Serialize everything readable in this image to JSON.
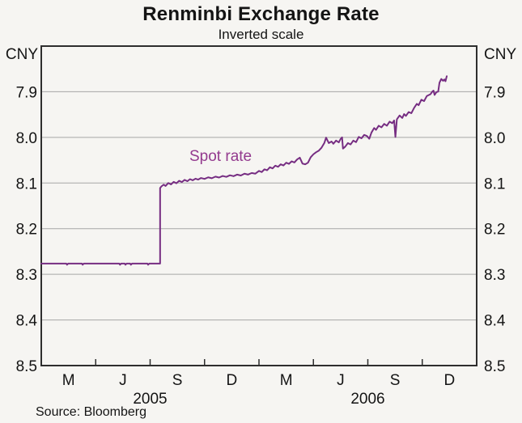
{
  "chart_data": {
    "type": "line",
    "title": "Renminbi Exchange Rate",
    "subtitle": "Inverted scale",
    "y_unit": "CNY",
    "source": "Source: Bloomberg",
    "annotation": {
      "text": "Spot rate"
    },
    "legend_position": "inline-annotation",
    "grid": true,
    "y_axis": {
      "inverted": true,
      "ylim": [
        7.8,
        8.5
      ],
      "ticks": [
        7.9,
        8.0,
        8.1,
        8.2,
        8.3,
        8.4,
        8.5
      ],
      "tick_label_format": "0.1f",
      "labels_both_sides": true,
      "gridline_ticks": [
        7.9,
        8.0,
        8.1,
        8.2,
        8.3,
        8.4
      ]
    },
    "x_axis": {
      "start_month": "2005-01",
      "end_month": "2006-12",
      "months_span": 24,
      "quarter_tick_month_offsets": [
        3,
        6,
        9,
        12,
        15,
        18,
        21
      ],
      "month_labels": [
        {
          "label": "M",
          "m": 1.5
        },
        {
          "label": "J",
          "m": 4.5
        },
        {
          "label": "S",
          "m": 7.5
        },
        {
          "label": "D",
          "m": 10.5
        },
        {
          "label": "M",
          "m": 13.5
        },
        {
          "label": "J",
          "m": 16.5
        },
        {
          "label": "S",
          "m": 19.5
        },
        {
          "label": "D",
          "m": 22.5
        }
      ],
      "year_labels": [
        {
          "label": "2005",
          "m": 6
        },
        {
          "label": "2006",
          "m": 18
        }
      ]
    },
    "colors": {
      "line": "#762d82",
      "annotation_text": "#933a8e",
      "gridline": "#a6a6a6",
      "frame": "#2e2e2e",
      "background": "#f6f5f2"
    },
    "series": [
      {
        "name": "Spot rate",
        "color": "#762d82",
        "x_unit": "months-since-2005-01",
        "y_unit": "CNY per USD",
        "points": [
          [
            0.0,
            8.2765
          ],
          [
            0.7,
            8.2765
          ],
          [
            1.38,
            8.2765
          ],
          [
            1.42,
            8.279
          ],
          [
            1.48,
            8.2765
          ],
          [
            2.24,
            8.2765
          ],
          [
            2.28,
            8.279
          ],
          [
            2.34,
            8.2765
          ],
          [
            3.2,
            8.2765
          ],
          [
            4.3,
            8.2765
          ],
          [
            4.34,
            8.279
          ],
          [
            4.4,
            8.2765
          ],
          [
            4.6,
            8.2765
          ],
          [
            4.64,
            8.279
          ],
          [
            4.7,
            8.2765
          ],
          [
            4.9,
            8.2765
          ],
          [
            4.94,
            8.279
          ],
          [
            5.0,
            8.2765
          ],
          [
            5.85,
            8.2765
          ],
          [
            5.89,
            8.279
          ],
          [
            5.95,
            8.2765
          ],
          [
            6.55,
            8.2765
          ],
          [
            6.55,
            8.111
          ],
          [
            6.62,
            8.1075
          ],
          [
            6.75,
            8.1035
          ],
          [
            6.85,
            8.1065
          ],
          [
            7.0,
            8.1
          ],
          [
            7.15,
            8.103
          ],
          [
            7.3,
            8.0975
          ],
          [
            7.45,
            8.1005
          ],
          [
            7.6,
            8.095
          ],
          [
            7.75,
            8.098
          ],
          [
            7.9,
            8.093
          ],
          [
            8.05,
            8.096
          ],
          [
            8.2,
            8.0915
          ],
          [
            8.35,
            8.094
          ],
          [
            8.5,
            8.0905
          ],
          [
            8.65,
            8.0925
          ],
          [
            8.8,
            8.089
          ],
          [
            9.0,
            8.091
          ],
          [
            9.2,
            8.0875
          ],
          [
            9.4,
            8.0895
          ],
          [
            9.6,
            8.086
          ],
          [
            9.8,
            8.088
          ],
          [
            10.0,
            8.0845
          ],
          [
            10.2,
            8.0865
          ],
          [
            10.4,
            8.083
          ],
          [
            10.6,
            8.085
          ],
          [
            10.8,
            8.0815
          ],
          [
            11.0,
            8.0835
          ],
          [
            11.2,
            8.0795
          ],
          [
            11.4,
            8.0815
          ],
          [
            11.6,
            8.078
          ],
          [
            11.8,
            8.0795
          ],
          [
            12.0,
            8.0735
          ],
          [
            12.15,
            8.076
          ],
          [
            12.3,
            8.07
          ],
          [
            12.45,
            8.072
          ],
          [
            12.6,
            8.0655
          ],
          [
            12.75,
            8.068
          ],
          [
            12.9,
            8.062
          ],
          [
            13.05,
            8.0645
          ],
          [
            13.2,
            8.059
          ],
          [
            13.35,
            8.0615
          ],
          [
            13.5,
            8.0555
          ],
          [
            13.65,
            8.058
          ],
          [
            13.8,
            8.0525
          ],
          [
            13.95,
            8.055
          ],
          [
            14.1,
            8.0485
          ],
          [
            14.25,
            8.0445
          ],
          [
            14.4,
            8.0575
          ],
          [
            14.55,
            8.059
          ],
          [
            14.7,
            8.0555
          ],
          [
            14.85,
            8.0435
          ],
          [
            15.0,
            8.037
          ],
          [
            15.15,
            8.0325
          ],
          [
            15.3,
            8.029
          ],
          [
            15.45,
            8.0225
          ],
          [
            15.6,
            8.0125
          ],
          [
            15.7,
            8.0005
          ],
          [
            15.85,
            8.0125
          ],
          [
            16.0,
            8.009
          ],
          [
            16.1,
            8.014
          ],
          [
            16.25,
            8.007
          ],
          [
            16.4,
            8.011
          ],
          [
            16.5,
            8.0035
          ],
          [
            16.58,
            8.0
          ],
          [
            16.63,
            8.0245
          ],
          [
            16.75,
            8.0205
          ],
          [
            16.9,
            8.0125
          ],
          [
            17.05,
            8.0155
          ],
          [
            17.2,
            8.007
          ],
          [
            17.35,
            8.0105
          ],
          [
            17.5,
            7.999
          ],
          [
            17.65,
            8.002
          ],
          [
            17.8,
            7.9945
          ],
          [
            17.95,
            7.997
          ],
          [
            18.08,
            8.003
          ],
          [
            18.2,
            7.9895
          ],
          [
            18.35,
            7.9795
          ],
          [
            18.45,
            7.9835
          ],
          [
            18.6,
            7.9745
          ],
          [
            18.75,
            7.978
          ],
          [
            18.9,
            7.9705
          ],
          [
            19.05,
            7.9745
          ],
          [
            19.2,
            7.9655
          ],
          [
            19.35,
            7.969
          ],
          [
            19.45,
            7.963
          ],
          [
            19.52,
            7.999
          ],
          [
            19.6,
            7.9605
          ],
          [
            19.75,
            7.952
          ],
          [
            19.9,
            7.9575
          ],
          [
            20.0,
            7.949
          ],
          [
            20.1,
            7.953
          ],
          [
            20.25,
            7.9445
          ],
          [
            20.4,
            7.947
          ],
          [
            20.55,
            7.9355
          ],
          [
            20.7,
            7.9265
          ],
          [
            20.8,
            7.9295
          ],
          [
            20.95,
            7.9175
          ],
          [
            21.1,
            7.9205
          ],
          [
            21.25,
            7.9095
          ],
          [
            21.45,
            7.9055
          ],
          [
            21.55,
            7.9
          ],
          [
            21.62,
            7.8975
          ],
          [
            21.68,
            7.907
          ],
          [
            21.78,
            7.901
          ],
          [
            21.88,
            7.8995
          ],
          [
            21.95,
            7.88
          ],
          [
            22.05,
            7.872
          ],
          [
            22.15,
            7.876
          ],
          [
            22.22,
            7.873
          ],
          [
            22.28,
            7.877
          ],
          [
            22.35,
            7.866
          ]
        ]
      }
    ]
  }
}
